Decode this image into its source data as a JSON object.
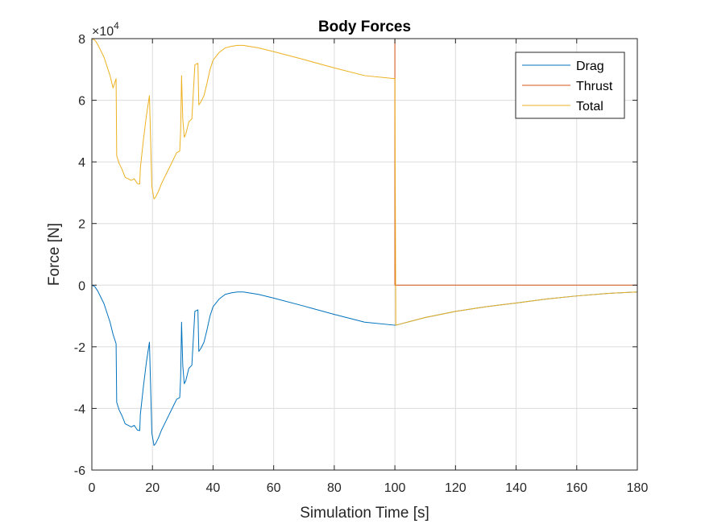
{
  "chart_data": {
    "type": "line",
    "title": "Body Forces",
    "xlabel": "Simulation Time [s]",
    "ylabel": "Force [N]",
    "y_exponent_base": "×10",
    "y_exponent_power": "4",
    "xlim": [
      0,
      180
    ],
    "ylim": [
      -6,
      8
    ],
    "xticks": [
      0,
      20,
      40,
      60,
      80,
      100,
      120,
      140,
      160,
      180
    ],
    "yticks": [
      -6,
      -4,
      -2,
      0,
      2,
      4,
      6,
      8
    ],
    "grid": true,
    "legend_position": "top-right",
    "series": [
      {
        "name": "Drag",
        "color": "#0072BD",
        "x": [
          0,
          1,
          2,
          3,
          4,
          5,
          6,
          7,
          8,
          8.2,
          9,
          10,
          11,
          12,
          13,
          14,
          15,
          15.8,
          16,
          17,
          18,
          19,
          19.8,
          20.5,
          21,
          22,
          23,
          24,
          25,
          26,
          27,
          28,
          29,
          29.3,
          29.6,
          30,
          30.5,
          31,
          32,
          33,
          34,
          35,
          35.3,
          36,
          37,
          38,
          39,
          40,
          42,
          44,
          46,
          48,
          50,
          55,
          60,
          70,
          80,
          90,
          100,
          100.3,
          110,
          120,
          130,
          140,
          150,
          160,
          170,
          180
        ],
        "y": [
          0,
          -0.05,
          -0.2,
          -0.4,
          -0.6,
          -0.9,
          -1.2,
          -1.6,
          -1.9,
          -3.8,
          -4.05,
          -4.25,
          -4.5,
          -4.55,
          -4.6,
          -4.55,
          -4.7,
          -4.72,
          -4.2,
          -3.3,
          -2.5,
          -1.85,
          -4.8,
          -5.2,
          -5.15,
          -4.95,
          -4.7,
          -4.5,
          -4.3,
          -4.1,
          -3.9,
          -3.7,
          -3.65,
          -3.0,
          -1.2,
          -2.6,
          -3.2,
          -3.1,
          -2.7,
          -2.6,
          -0.85,
          -0.8,
          -2.15,
          -2.05,
          -1.85,
          -1.45,
          -1.0,
          -0.7,
          -0.45,
          -0.3,
          -0.25,
          -0.22,
          -0.22,
          -0.3,
          -0.42,
          -0.68,
          -0.95,
          -1.2,
          -1.3,
          -1.3,
          -1.05,
          -0.85,
          -0.7,
          -0.58,
          -0.45,
          -0.35,
          -0.27,
          -0.22
        ]
      },
      {
        "name": "Thrust",
        "color": "#D95319",
        "x": [
          0,
          100,
          100,
          180
        ],
        "y": [
          8,
          8,
          0,
          0
        ]
      },
      {
        "name": "Total",
        "color": "#EDB120",
        "x": [
          0,
          1,
          2,
          3,
          4,
          5,
          6,
          7,
          8,
          8.2,
          9,
          10,
          11,
          12,
          13,
          14,
          15,
          15.8,
          16,
          17,
          18,
          19,
          19.8,
          20.5,
          21,
          22,
          23,
          24,
          25,
          26,
          27,
          28,
          29,
          29.3,
          29.6,
          30,
          30.5,
          31,
          32,
          33,
          34,
          35,
          35.3,
          36,
          37,
          38,
          39,
          40,
          42,
          44,
          46,
          48,
          50,
          55,
          60,
          70,
          80,
          90,
          100,
          100.3,
          110,
          120,
          130,
          140,
          150,
          160,
          170,
          180
        ],
        "y": [
          8,
          7.95,
          7.8,
          7.6,
          7.4,
          7.1,
          6.8,
          6.4,
          6.7,
          4.2,
          3.95,
          3.75,
          3.5,
          3.45,
          3.4,
          3.45,
          3.3,
          3.28,
          3.8,
          4.7,
          5.5,
          6.15,
          3.2,
          2.8,
          2.85,
          3.05,
          3.3,
          3.5,
          3.7,
          3.9,
          4.1,
          4.3,
          4.35,
          5.0,
          6.8,
          5.4,
          4.8,
          4.9,
          5.3,
          5.4,
          7.15,
          7.2,
          5.85,
          5.95,
          6.15,
          6.55,
          7.0,
          7.3,
          7.55,
          7.7,
          7.75,
          7.78,
          7.78,
          7.7,
          7.58,
          7.32,
          7.05,
          6.8,
          6.7,
          -1.3,
          -1.05,
          -0.85,
          -0.7,
          -0.58,
          -0.45,
          -0.35,
          -0.27,
          -0.22
        ]
      }
    ]
  }
}
